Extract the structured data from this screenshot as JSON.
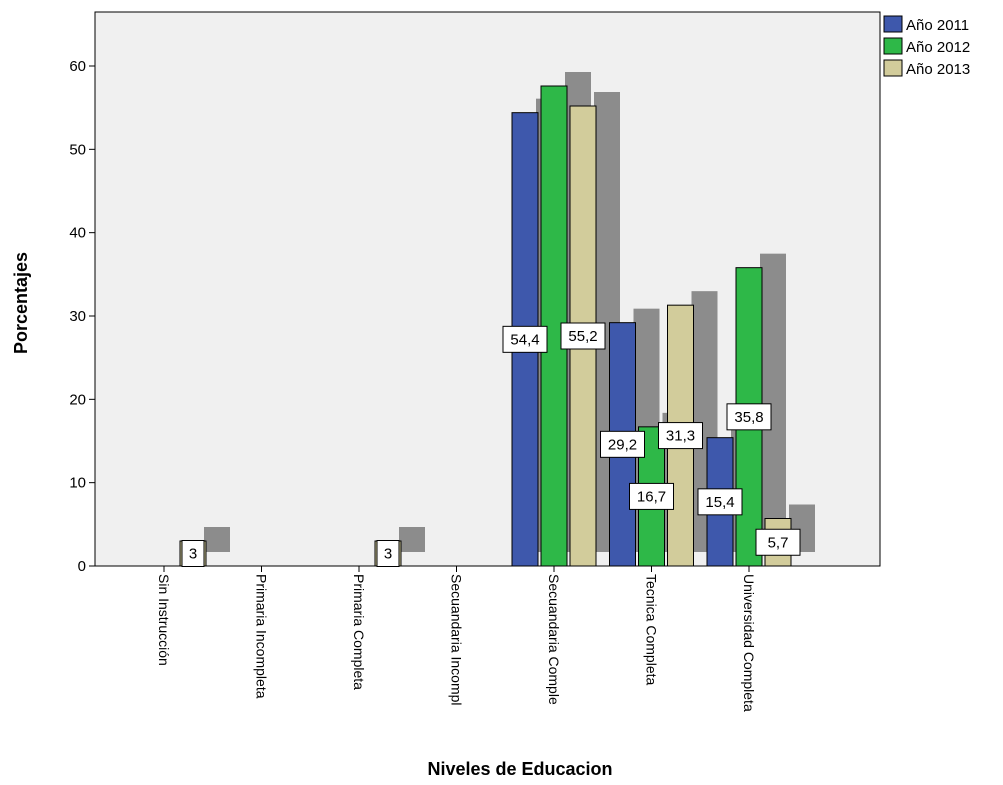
{
  "chart_data": {
    "type": "bar",
    "title": "",
    "xlabel": "Niveles de Educacion",
    "ylabel": "Porcentajes",
    "ylim": [
      0,
      66
    ],
    "yticks": [
      0,
      10,
      20,
      30,
      40,
      50,
      60
    ],
    "grid": false,
    "legend_position": "top-right",
    "background_color": "#f0f0f0",
    "shadow_color": "#8c8c8c",
    "categories": [
      "Sin Instrucción",
      "Primaria Incompleta",
      "Primaria Completa",
      "Secuandaria Incompl",
      "Secuandaria Comple",
      "Tecnica Completa",
      "Universidad Completa"
    ],
    "series": [
      {
        "name": "Año 2011",
        "color": "#3e58ac",
        "values": [
          null,
          null,
          null,
          null,
          54.4,
          29.2,
          15.4
        ],
        "labels": [
          "",
          "",
          "",
          "",
          "54,4",
          "29,2",
          "15,4"
        ]
      },
      {
        "name": "Año 2012",
        "color": "#2eb848",
        "values": [
          null,
          null,
          null,
          null,
          57.6,
          16.7,
          35.8
        ],
        "labels": [
          "",
          "",
          "",
          "",
          "",
          "16,7",
          "35,8"
        ]
      },
      {
        "name": "Año 2013",
        "color": "#d2cc9b",
        "values": [
          3,
          null,
          3,
          null,
          55.2,
          31.3,
          5.7
        ],
        "labels": [
          "3",
          "",
          "3",
          "",
          "55,2",
          "31,3",
          "5,7"
        ]
      }
    ]
  }
}
